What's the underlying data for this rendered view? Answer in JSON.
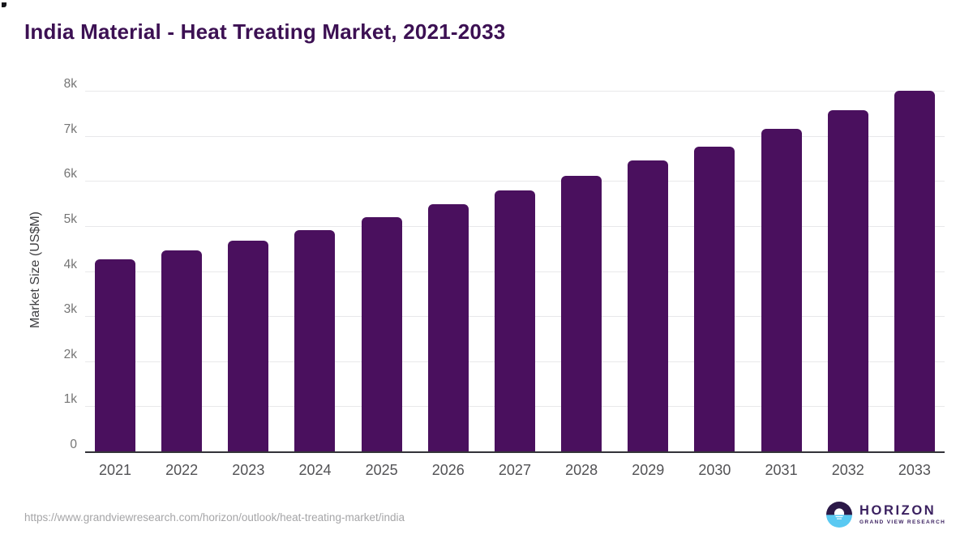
{
  "page": {
    "background": "#ffffff"
  },
  "title": {
    "text": "India Material - Heat Treating Market, 2021-2033",
    "color": "#3c1053"
  },
  "chart_data": {
    "type": "bar",
    "title": "India Material - Heat Treating Market, 2021-2033",
    "categories": [
      "2021",
      "2022",
      "2023",
      "2024",
      "2025",
      "2026",
      "2027",
      "2028",
      "2029",
      "2030",
      "2031",
      "2032",
      "2033"
    ],
    "values": [
      4270,
      4470,
      4690,
      4930,
      5220,
      5500,
      5810,
      6130,
      6470,
      6770,
      7170,
      7590,
      8020
    ],
    "xlabel": "",
    "ylabel": "Market Size (US$M)",
    "ylim": [
      0,
      8000
    ],
    "ytick_interval": 1000,
    "ytick_labels": [
      "0",
      "1k",
      "2k",
      "3k",
      "4k",
      "5k",
      "6k",
      "7k",
      "8k"
    ],
    "grid": true,
    "legend": false,
    "bar_color": "#4a105e",
    "gridline_color": "#e8e8ea",
    "axis_line_color": "#333338",
    "tick_label_color": "#757575",
    "x_label_color": "#525255"
  },
  "footer": {
    "source_url": "https://www.grandviewresearch.com/horizon/outlook/heat-treating-market/india",
    "logo": {
      "brand": "HORIZON",
      "tagline": "GRAND VIEW RESEARCH",
      "icon": "horizon-sun-icon",
      "text_color": "#3b2160",
      "icon_purple": "#2b1847",
      "icon_blue": "#5ac9f2"
    }
  }
}
